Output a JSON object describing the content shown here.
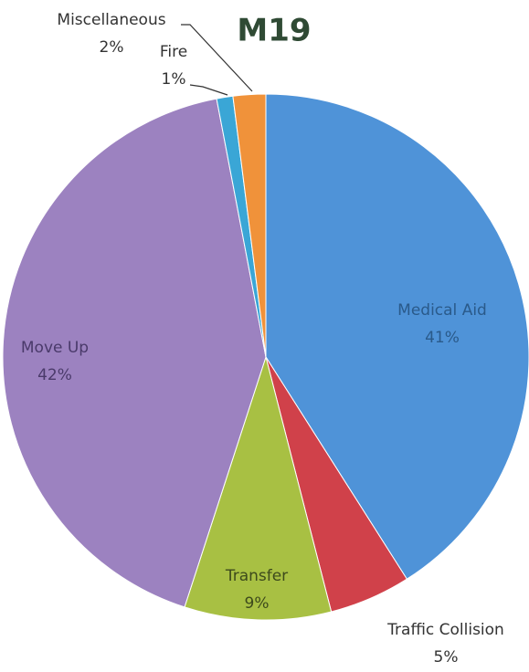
{
  "chart_data": {
    "type": "pie",
    "title": "M19",
    "categories": [
      "Medical Aid",
      "Traffic Collision",
      "Transfer",
      "Move Up",
      "Fire",
      "Miscellaneous"
    ],
    "values": [
      41,
      5,
      9,
      42,
      1,
      2
    ],
    "value_labels": [
      "41%",
      "5%",
      "9%",
      "42%",
      "1%",
      "2%"
    ],
    "colors": [
      "#4f93d8",
      "#d0414a",
      "#a8c043",
      "#9c82c0",
      "#3aa6d6",
      "#f0923a"
    ]
  }
}
